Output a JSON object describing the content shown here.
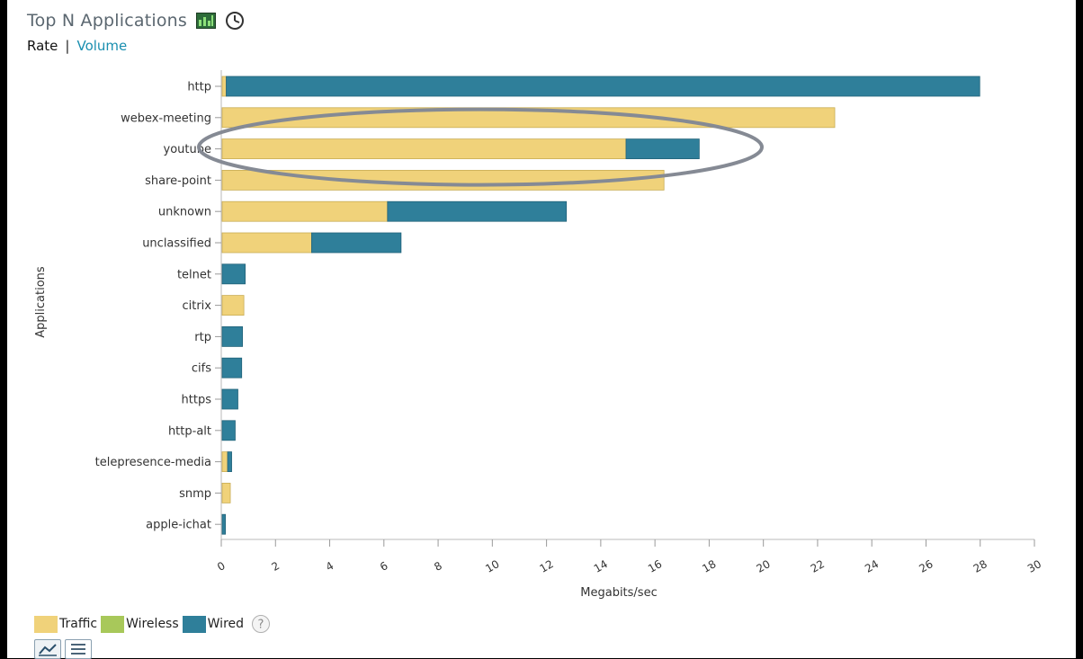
{
  "header": {
    "title": "Top N Applications",
    "icons": [
      "chart-icon",
      "clock-icon"
    ]
  },
  "tabs": {
    "rate": "Rate",
    "separator": "|",
    "volume": "Volume"
  },
  "colors": {
    "traffic": "#f0d27a",
    "wireless": "#a8c85a",
    "wired": "#2f7f9a"
  },
  "chart_data": {
    "type": "bar",
    "orientation": "horizontal",
    "stacked": true,
    "title": "",
    "xlabel": "Megabits/sec",
    "ylabel": "Applications",
    "xlim": [
      0,
      30
    ],
    "xticks": [
      0,
      2,
      4,
      6,
      8,
      10,
      12,
      14,
      16,
      18,
      20,
      22,
      24,
      26,
      28,
      30
    ],
    "categories": [
      "http",
      "webex-meeting",
      "youtube",
      "share-point",
      "unknown",
      "unclassified",
      "telnet",
      "citrix",
      "rtp",
      "cifs",
      "https",
      "http-alt",
      "telepresence-media",
      "snmp",
      "apple-ichat"
    ],
    "series": [
      {
        "name": "Traffic",
        "values": [
          0.15,
          22.6,
          14.9,
          16.3,
          6.1,
          3.3,
          0.0,
          0.8,
          0.0,
          0.0,
          0.0,
          0.0,
          0.2,
          0.3,
          0.0
        ]
      },
      {
        "name": "Wireless",
        "values": [
          0,
          0,
          0,
          0,
          0,
          0,
          0,
          0,
          0,
          0,
          0,
          0,
          0,
          0,
          0
        ]
      },
      {
        "name": "Wired",
        "values": [
          27.8,
          0.0,
          2.7,
          0.0,
          6.6,
          3.3,
          0.85,
          0.0,
          0.75,
          0.72,
          0.58,
          0.48,
          0.15,
          0.0,
          0.12
        ]
      }
    ],
    "legend": [
      "Traffic",
      "Wireless",
      "Wired"
    ],
    "legend_position": "bottom-left",
    "grid": false,
    "highlight": "youtube"
  }
}
